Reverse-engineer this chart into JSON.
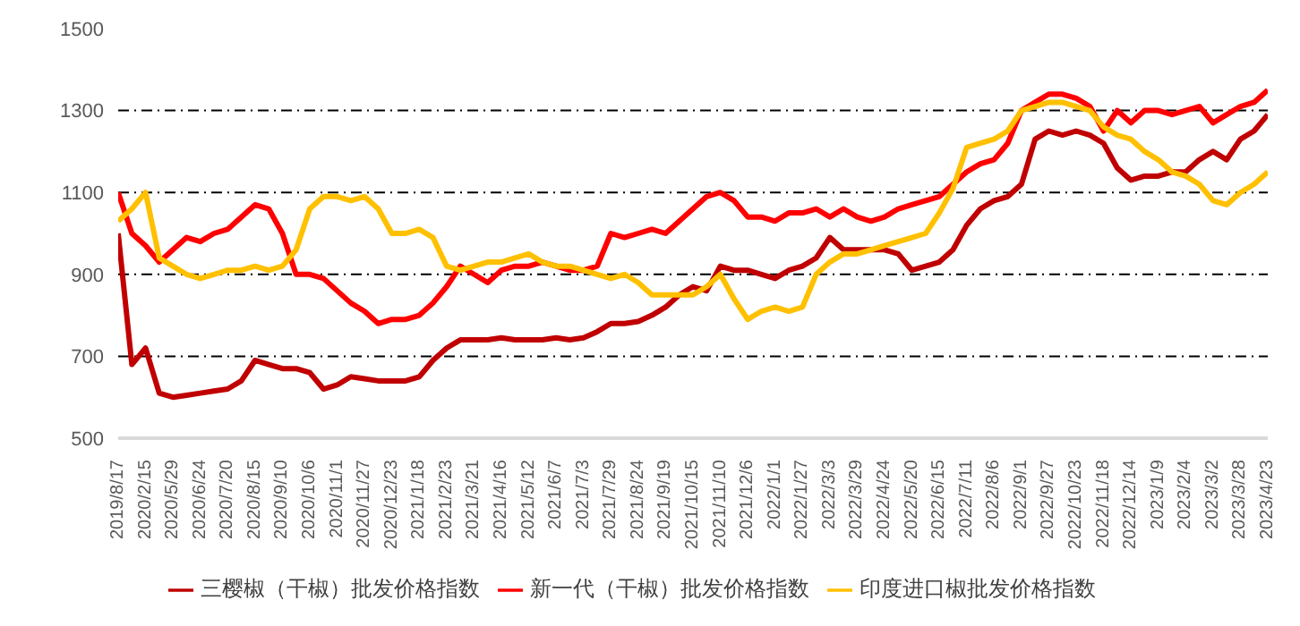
{
  "chart_data": {
    "type": "line",
    "categories": [
      "2019/8/17",
      null,
      "2020/2/15",
      null,
      "2020/5/29",
      null,
      "2020/6/24",
      null,
      "2020/7/20",
      null,
      "2020/8/15",
      null,
      "2020/9/10",
      null,
      "2020/10/6",
      null,
      "2020/11/1",
      null,
      "2020/11/27",
      null,
      "2020/12/23",
      null,
      "2021/1/18",
      null,
      "2021/2/23",
      null,
      "2021/3/21",
      null,
      "2021/4/16",
      null,
      "2021/5/12",
      null,
      "2021/6/7",
      null,
      "2021/7/3",
      null,
      "2021/7/29",
      null,
      "2021/8/24",
      null,
      "2021/9/19",
      null,
      "2021/10/15",
      null,
      "2021/11/10",
      null,
      "2021/12/6",
      null,
      "2022/1/1",
      null,
      "2022/1/27",
      null,
      "2022/3/3",
      null,
      "2022/3/29",
      null,
      "2022/4/24",
      null,
      "2022/5/20",
      null,
      "2022/6/15",
      null,
      "2022/7/11",
      null,
      "2022/8/6",
      null,
      "2022/9/1",
      null,
      "2022/9/27",
      null,
      "2022/10/23",
      null,
      "2022/11/18",
      null,
      "2022/12/14",
      null,
      "2023/1/9",
      null,
      "2023/2/4",
      null,
      "2023/3/2",
      null,
      "2023/3/28",
      null,
      "2023/4/23"
    ],
    "series": [
      {
        "name": "三樱椒（干椒）批发价格指数",
        "color": "#c00000",
        "values": [
          1000,
          680,
          720,
          610,
          600,
          605,
          610,
          615,
          620,
          640,
          690,
          680,
          670,
          670,
          660,
          620,
          630,
          650,
          645,
          640,
          640,
          640,
          650,
          690,
          720,
          740,
          740,
          740,
          745,
          740,
          740,
          740,
          745,
          740,
          745,
          760,
          780,
          780,
          785,
          800,
          820,
          850,
          870,
          860,
          920,
          910,
          910,
          900,
          890,
          910,
          920,
          940,
          990,
          960,
          960,
          960,
          960,
          950,
          910,
          920,
          930,
          960,
          1020,
          1060,
          1080,
          1090,
          1120,
          1230,
          1250,
          1240,
          1250,
          1240,
          1220,
          1160,
          1130,
          1140,
          1140,
          1150,
          1150,
          1180,
          1200,
          1180,
          1230,
          1250,
          1290
        ]
      },
      {
        "name": "新一代（干椒）批发价格指数",
        "color": "#ff0000",
        "values": [
          1100,
          1000,
          970,
          930,
          960,
          990,
          980,
          1000,
          1010,
          1040,
          1070,
          1060,
          1000,
          900,
          900,
          890,
          860,
          830,
          810,
          780,
          790,
          790,
          800,
          830,
          870,
          920,
          900,
          880,
          910,
          920,
          920,
          930,
          920,
          910,
          910,
          920,
          1000,
          990,
          1000,
          1010,
          1000,
          1030,
          1060,
          1090,
          1100,
          1080,
          1040,
          1040,
          1030,
          1050,
          1050,
          1060,
          1040,
          1060,
          1040,
          1030,
          1040,
          1060,
          1070,
          1080,
          1090,
          1120,
          1150,
          1170,
          1180,
          1220,
          1300,
          1320,
          1340,
          1340,
          1330,
          1310,
          1250,
          1300,
          1270,
          1300,
          1300,
          1290,
          1300,
          1310,
          1270,
          1290,
          1310,
          1320,
          1350
        ]
      },
      {
        "name": "印度进口椒批发价格指数",
        "color": "#ffc000",
        "values": [
          1030,
          1060,
          1100,
          940,
          920,
          900,
          890,
          900,
          910,
          910,
          920,
          910,
          920,
          960,
          1060,
          1090,
          1090,
          1080,
          1090,
          1060,
          1000,
          1000,
          1010,
          990,
          920,
          910,
          920,
          930,
          930,
          940,
          950,
          930,
          920,
          920,
          910,
          900,
          890,
          900,
          880,
          850,
          850,
          850,
          850,
          870,
          900,
          840,
          790,
          810,
          820,
          810,
          820,
          900,
          930,
          950,
          950,
          960,
          970,
          980,
          990,
          1000,
          1050,
          1110,
          1210,
          1220,
          1230,
          1250,
          1300,
          1310,
          1320,
          1320,
          1310,
          1300,
          1260,
          1240,
          1230,
          1200,
          1180,
          1150,
          1140,
          1120,
          1080,
          1070,
          1100,
          1120,
          1150
        ]
      }
    ],
    "ylim": [
      500,
      1500
    ],
    "yticks": [
      500,
      700,
      900,
      1100,
      1300,
      1500
    ],
    "grid": "y",
    "legend": "bottom",
    "marker": "none",
    "line_style": "solid"
  }
}
